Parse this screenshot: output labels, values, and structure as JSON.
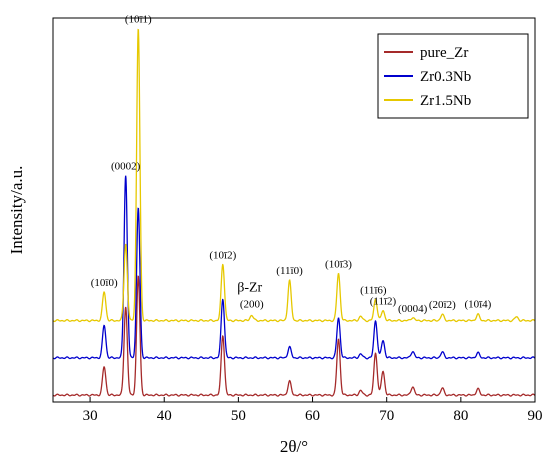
{
  "chart_data": {
    "type": "line",
    "title": "",
    "xlabel": "2θ/°",
    "ylabel": "Intensity/a.u.",
    "xlim": [
      25,
      90
    ],
    "ylim": [
      0,
      100
    ],
    "x_ticks": [
      30,
      40,
      50,
      60,
      70,
      80,
      90
    ],
    "x_tick_labels": [
      "30",
      "40",
      "50",
      "60",
      "70",
      "80",
      "90"
    ],
    "y_ticks_shown": false,
    "grid": false,
    "legend_position": "top-right",
    "series": [
      {
        "name": "pure_Zr",
        "color": "#a52a2a",
        "baseline": 1.8,
        "peaks": [
          [
            31.9,
            7.4
          ],
          [
            34.8,
            23
          ],
          [
            36.5,
            31
          ],
          [
            47.9,
            15.6
          ],
          [
            56.9,
            3.6
          ],
          [
            63.5,
            14.6
          ],
          [
            66.5,
            1.2
          ],
          [
            68.5,
            11
          ],
          [
            69.5,
            6.2
          ],
          [
            73.5,
            2.2
          ],
          [
            77.5,
            1.8
          ],
          [
            82.3,
            1.6
          ]
        ]
      },
      {
        "name": "Zr0.3Nb",
        "color": "#0000cd",
        "baseline": 11.5,
        "peaks": [
          [
            31.9,
            8.5
          ],
          [
            34.8,
            47.5
          ],
          [
            36.5,
            39
          ],
          [
            47.9,
            15.4
          ],
          [
            56.9,
            2.8
          ],
          [
            63.5,
            10.4
          ],
          [
            66.5,
            1.0
          ],
          [
            68.5,
            9.7
          ],
          [
            69.5,
            4.5
          ],
          [
            73.5,
            1.7
          ],
          [
            77.5,
            1.5
          ],
          [
            82.3,
            1.3
          ]
        ]
      },
      {
        "name": "Zr1.5Nb",
        "color": "#e6c800",
        "baseline": 21.2,
        "peaks": [
          [
            31.9,
            7.5
          ],
          [
            34.8,
            20
          ],
          [
            36.5,
            76
          ],
          [
            47.9,
            14.8
          ],
          [
            51.8,
            1.4
          ],
          [
            56.9,
            10.4
          ],
          [
            63.5,
            12.3
          ],
          [
            66.5,
            1.1
          ],
          [
            68.5,
            5.6
          ],
          [
            69.5,
            2.6
          ],
          [
            73.5,
            0.8
          ],
          [
            77.5,
            1.6
          ],
          [
            82.3,
            1.6
          ],
          [
            87.5,
            1.0
          ]
        ]
      }
    ],
    "annotations": [
      {
        "label": "(10ī0)",
        "x": 31.9,
        "series": "Zr1.5Nb"
      },
      {
        "label": "(0002)",
        "x": 34.8,
        "series": "Zr0.3Nb"
      },
      {
        "label": "(10ī1)",
        "x": 36.5,
        "series": "Zr1.5Nb"
      },
      {
        "label": "(10ī2)",
        "x": 47.9,
        "series": "Zr1.5Nb"
      },
      {
        "label": "(11ī0)",
        "x": 56.9,
        "series": "Zr1.5Nb"
      },
      {
        "label": "(10ī3)",
        "x": 63.5,
        "series": "Zr1.5Nb"
      },
      {
        "label": "(11ī6)",
        "x": 68.2,
        "series": "Zr1.5Nb"
      },
      {
        "label": "(11ī2)",
        "x": 69.5,
        "series": "Zr1.5Nb"
      },
      {
        "label": "(0004)",
        "x": 73.5,
        "series": "Zr1.5Nb"
      },
      {
        "label": "(20ī2)",
        "x": 77.5,
        "series": "Zr1.5Nb"
      },
      {
        "label": "(10ī4)",
        "x": 82.3,
        "series": "Zr1.5Nb"
      }
    ],
    "beta_annotation": {
      "label": "β-Zr",
      "sublabel": "(200)",
      "x": 51.8,
      "series": "Zr1.5Nb"
    }
  }
}
